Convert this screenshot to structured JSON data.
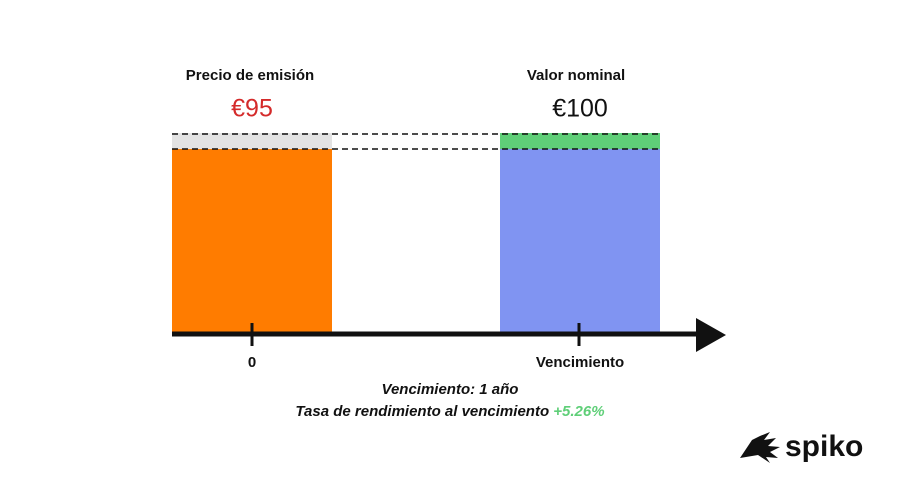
{
  "left": {
    "label": "Precio de emisión",
    "price": "€95",
    "tick": "0"
  },
  "right": {
    "label": "Valor nominal",
    "price": "€100",
    "tick": "Vencimiento"
  },
  "notes": {
    "maturity": "Vencimiento: 1 año",
    "yield_label": "Tasa de rendimiento al vencimiento",
    "yield_value": "+5.26%"
  },
  "logo": "spiko"
}
